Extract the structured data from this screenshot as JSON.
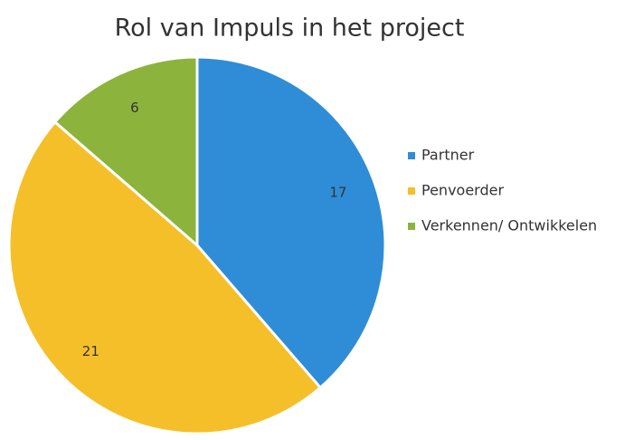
{
  "chart_data": {
    "type": "pie",
    "title": "Rol van Impuls in het project",
    "categories": [
      "Partner",
      "Penvoerder",
      "Verkennen/ Ontwikkelen"
    ],
    "values": [
      17,
      21,
      6
    ],
    "colors": [
      "#2e8dd6",
      "#f5bf2a",
      "#8cb43c"
    ],
    "legend": "right"
  }
}
